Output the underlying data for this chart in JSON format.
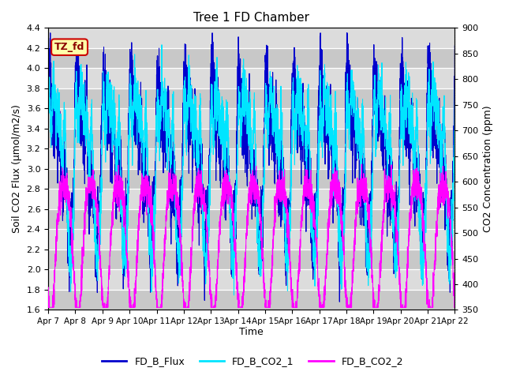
{
  "title": "Tree 1 FD Chamber",
  "xlabel": "Time",
  "ylabel_left": "Soil CO2 Flux (μmol/m2/s)",
  "ylabel_right": "CO2 Concentration (ppm)",
  "ylim_left": [
    1.6,
    4.4
  ],
  "ylim_right": [
    350,
    900
  ],
  "date_labels": [
    "Apr 7",
    "Apr 8",
    "Apr 9",
    "Apr 10",
    "Apr 11",
    "Apr 12",
    "Apr 13",
    "Apr 14",
    "Apr 15",
    "Apr 16",
    "Apr 17",
    "Apr 18",
    "Apr 19",
    "Apr 20",
    "Apr 21",
    "Apr 22"
  ],
  "color_flux": "#0000CC",
  "color_co2_1": "#00E5FF",
  "color_co2_2": "#FF00FF",
  "legend_labels": [
    "FD_B_Flux",
    "FD_B_CO2_1",
    "FD_B_CO2_2"
  ],
  "annotation_text": "TZ_fd",
  "annotation_bg": "#FFFFAA",
  "annotation_border": "#CC0000",
  "plot_bg_light": "#DCDCDC",
  "plot_bg_dark": "#C8C8C8",
  "grid_color": "#FFFFFF",
  "n_days": 15,
  "n_per_day": 288
}
